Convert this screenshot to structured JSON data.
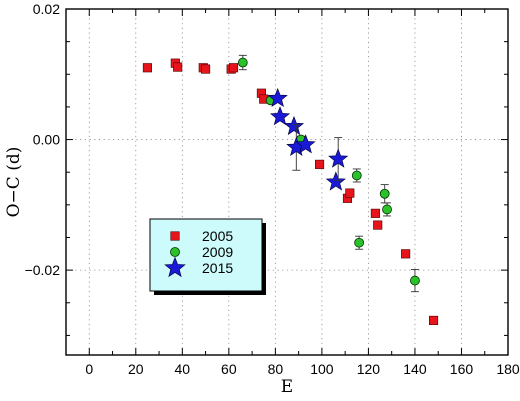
{
  "chart_data": {
    "type": "scatter",
    "xlabel": "E",
    "ylabel": "O−C (d)",
    "xlim": [
      -10,
      180
    ],
    "ylim": [
      -0.033,
      0.02
    ],
    "xticks": [
      0,
      20,
      40,
      60,
      80,
      100,
      120,
      140,
      160,
      180
    ],
    "yticks": [
      0.02,
      0.0,
      -0.02
    ],
    "ytick_labels": [
      "0.02",
      "0.00",
      "−0.02"
    ],
    "grid": true,
    "legend_placement": "center-left",
    "series": [
      {
        "name": "2005",
        "marker": "square",
        "color": "#e8141b",
        "points": [
          {
            "x": 25,
            "y": 0.011
          },
          {
            "x": 37,
            "y": 0.0117
          },
          {
            "x": 38,
            "y": 0.0111
          },
          {
            "x": 49,
            "y": 0.011
          },
          {
            "x": 50,
            "y": 0.0108
          },
          {
            "x": 61,
            "y": 0.0108
          },
          {
            "x": 62,
            "y": 0.011
          },
          {
            "x": 74,
            "y": 0.0071
          },
          {
            "x": 75,
            "y": 0.0062
          },
          {
            "x": 99,
            "y": -0.0038
          },
          {
            "x": 111,
            "y": -0.009
          },
          {
            "x": 112,
            "y": -0.0082
          },
          {
            "x": 123,
            "y": -0.0113
          },
          {
            "x": 124,
            "y": -0.0131
          },
          {
            "x": 136,
            "y": -0.0175
          },
          {
            "x": 148,
            "y": -0.0277
          }
        ]
      },
      {
        "name": "2009",
        "marker": "circle",
        "color": "#2bc12b",
        "points": [
          {
            "x": 66,
            "y": 0.0118,
            "err": 0.0011
          },
          {
            "x": 78,
            "y": 0.006,
            "err": 0.0004
          },
          {
            "x": 91,
            "y": 0.0,
            "err": 0.0005
          },
          {
            "x": 115,
            "y": -0.0055,
            "err": 0.001
          },
          {
            "x": 116,
            "y": -0.0158,
            "err": 0.001
          },
          {
            "x": 127,
            "y": -0.0083,
            "err": 0.0014
          },
          {
            "x": 128,
            "y": -0.0107,
            "err": 0.001
          },
          {
            "x": 140,
            "y": -0.0216,
            "err": 0.0017
          }
        ]
      },
      {
        "name": "2015",
        "marker": "star",
        "color": "#1a1ad6",
        "points": [
          {
            "x": 81,
            "y": 0.0063,
            "err": 0.0
          },
          {
            "x": 82,
            "y": 0.0035,
            "err": 0.0
          },
          {
            "x": 88,
            "y": 0.002,
            "err": 0.0
          },
          {
            "x": 89,
            "y": -0.0012,
            "err": 0.0035
          },
          {
            "x": 93,
            "y": -0.0008,
            "err": 0.0
          },
          {
            "x": 106,
            "y": -0.0065,
            "err": 0.0
          },
          {
            "x": 107,
            "y": -0.003,
            "err": 0.0033
          }
        ]
      }
    ]
  }
}
